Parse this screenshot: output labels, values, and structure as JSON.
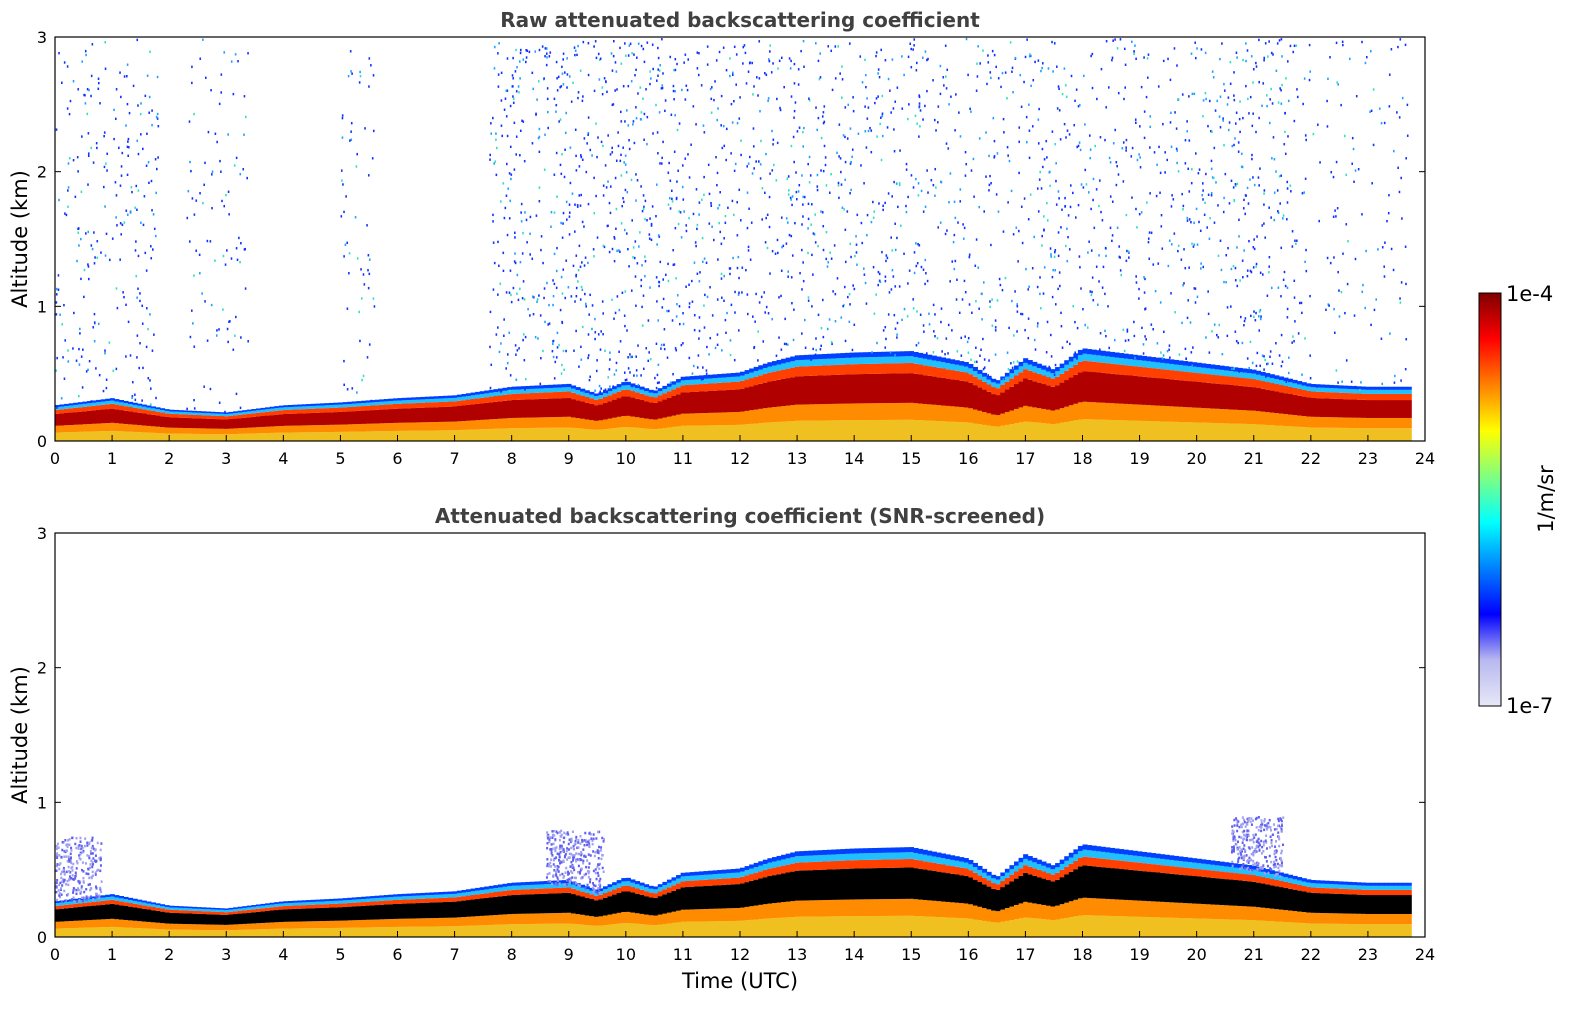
{
  "chart_data": [
    {
      "type": "heatmap",
      "title": "Raw attenuated backscattering coefficient",
      "xlabel": "",
      "ylabel": "Altitude (km)",
      "xlim": [
        0,
        24
      ],
      "ylim": [
        0,
        3
      ],
      "xticks": [
        "0",
        "1",
        "2",
        "3",
        "4",
        "5",
        "6",
        "7",
        "8",
        "9",
        "10",
        "11",
        "12",
        "13",
        "14",
        "15",
        "16",
        "17",
        "18",
        "19",
        "20",
        "21",
        "22",
        "23",
        "24"
      ],
      "yticks": [
        "0",
        "1",
        "2",
        "3"
      ],
      "snr_screened": false,
      "boundary_layer_top_km": [
        [
          0,
          0.25
        ],
        [
          1,
          0.3
        ],
        [
          2,
          0.22
        ],
        [
          3,
          0.2
        ],
        [
          4,
          0.25
        ],
        [
          5,
          0.27
        ],
        [
          6,
          0.3
        ],
        [
          7,
          0.32
        ],
        [
          8,
          0.38
        ],
        [
          9,
          0.4
        ],
        [
          9.5,
          0.33
        ],
        [
          10,
          0.42
        ],
        [
          10.5,
          0.35
        ],
        [
          11,
          0.45
        ],
        [
          12,
          0.48
        ],
        [
          12.5,
          0.55
        ],
        [
          13,
          0.6
        ],
        [
          14,
          0.62
        ],
        [
          15,
          0.63
        ],
        [
          16,
          0.55
        ],
        [
          16.5,
          0.42
        ],
        [
          17,
          0.58
        ],
        [
          17.5,
          0.5
        ],
        [
          18,
          0.65
        ],
        [
          19,
          0.6
        ],
        [
          20,
          0.55
        ],
        [
          21,
          0.5
        ],
        [
          22,
          0.4
        ],
        [
          23,
          0.38
        ],
        [
          23.7,
          0.38
        ]
      ]
    },
    {
      "type": "heatmap",
      "title": "Attenuated backscattering coefficient (SNR-screened)",
      "xlabel": "Time (UTC)",
      "ylabel": "Altitude (km)",
      "xlim": [
        0,
        24
      ],
      "ylim": [
        0,
        3
      ],
      "xticks": [
        "0",
        "1",
        "2",
        "3",
        "4",
        "5",
        "6",
        "7",
        "8",
        "9",
        "10",
        "11",
        "12",
        "13",
        "14",
        "15",
        "16",
        "17",
        "18",
        "19",
        "20",
        "21",
        "22",
        "23",
        "24"
      ],
      "yticks": [
        "0",
        "1",
        "2",
        "3"
      ],
      "snr_screened": true,
      "boundary_layer_top_km": [
        [
          0,
          0.25
        ],
        [
          1,
          0.3
        ],
        [
          2,
          0.22
        ],
        [
          3,
          0.2
        ],
        [
          4,
          0.25
        ],
        [
          5,
          0.27
        ],
        [
          6,
          0.3
        ],
        [
          7,
          0.32
        ],
        [
          8,
          0.38
        ],
        [
          9,
          0.4
        ],
        [
          9.5,
          0.33
        ],
        [
          10,
          0.42
        ],
        [
          10.5,
          0.35
        ],
        [
          11,
          0.45
        ],
        [
          12,
          0.48
        ],
        [
          12.5,
          0.55
        ],
        [
          13,
          0.6
        ],
        [
          14,
          0.62
        ],
        [
          15,
          0.63
        ],
        [
          16,
          0.55
        ],
        [
          16.5,
          0.42
        ],
        [
          17,
          0.58
        ],
        [
          17.5,
          0.5
        ],
        [
          18,
          0.65
        ],
        [
          19,
          0.6
        ],
        [
          20,
          0.55
        ],
        [
          21,
          0.5
        ],
        [
          22,
          0.4
        ],
        [
          23,
          0.38
        ],
        [
          23.7,
          0.38
        ]
      ]
    }
  ],
  "colorbar": {
    "max_label": "1e-4",
    "min_label": "1e-7",
    "unit_label": "1/m/sr",
    "colors": [
      "#e8e8f8",
      "#b8b8f0",
      "#0000ff",
      "#0080ff",
      "#00ffff",
      "#80ff80",
      "#ffff00",
      "#ff8000",
      "#ff0000",
      "#800000"
    ]
  }
}
